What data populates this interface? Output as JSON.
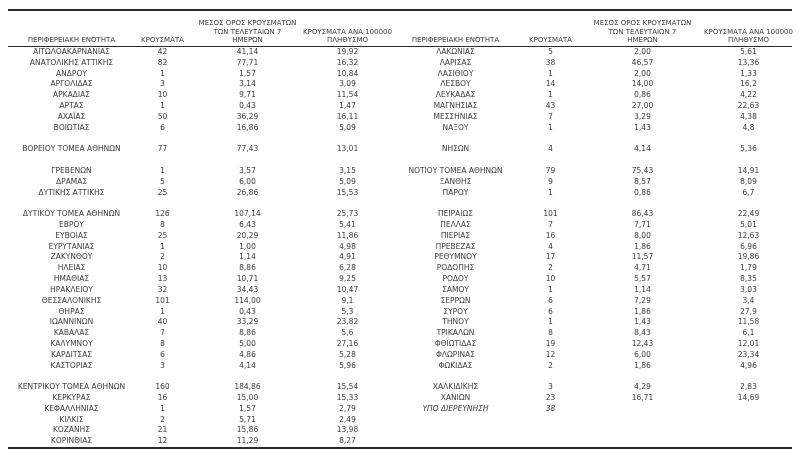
{
  "colors": {
    "background": "#ffffff",
    "text": "#3a3a3a",
    "rule_line": "#2b2b2b"
  },
  "columns": {
    "region": "ΠΕΡΙΦΕΡΕΙΑΚΗ ΕΝΟΤΗΤΑ",
    "cases": "ΚΡΟΥΣΜΑΤΑ",
    "avg7_lines": [
      "ΜΕΣΟΣ ΟΡΟΣ ΚΡΟΥΣΜΑΤΩΝ",
      "ΤΩΝ ΤΕΛΕΥΤΑΙΩΝ 7",
      "ΗΜΕΡΩΝ"
    ],
    "per100k_lines": [
      "ΚΡΟΥΣΜΑΤΑ ΑΝΑ 100000",
      "ΠΛΗΘΥΣΜΟ"
    ]
  },
  "left_table": {
    "rows": [
      {
        "name": "ΑΙΤΩΛΟΑΚΑΡΝΑΝΙΑΣ",
        "cases": "42",
        "avg7": "41,14",
        "per100k": "19,92"
      },
      {
        "name": "ΑΝΑΤΟΛΙΚΗΣ ΑΤΤΙΚΗΣ",
        "cases": "82",
        "avg7": "77,71",
        "per100k": "16,32"
      },
      {
        "name": "ΑΝΔΡΟΥ",
        "cases": "1",
        "avg7": "1,57",
        "per100k": "10,84"
      },
      {
        "name": "ΑΡΓΟΛΙΔΑΣ",
        "cases": "3",
        "avg7": "3,14",
        "per100k": "3,09"
      },
      {
        "name": "ΑΡΚΑΔΙΑΣ",
        "cases": "10",
        "avg7": "9,71",
        "per100k": "11,54"
      },
      {
        "name": "ΑΡΤΑΣ",
        "cases": "1",
        "avg7": "0,43",
        "per100k": "1,47"
      },
      {
        "name": "ΑΧΑΪΑΣ",
        "cases": "50",
        "avg7": "36,29",
        "per100k": "16,11"
      },
      {
        "name": "ΒΟΙΩΤΙΑΣ",
        "cases": "6",
        "avg7": "16,86",
        "per100k": "5,09"
      },
      {
        "name": "",
        "cases": "",
        "avg7": "",
        "per100k": ""
      },
      {
        "name": "ΒΟΡΕΙΟΥ ΤΟΜΕΑ ΑΘΗΝΩΝ",
        "cases": "77",
        "avg7": "77,43",
        "per100k": "13,01"
      },
      {
        "name": "",
        "cases": "",
        "avg7": "",
        "per100k": ""
      },
      {
        "name": "ΓΡΕΒΕΝΩΝ",
        "cases": "1",
        "avg7": "3,57",
        "per100k": "3,15"
      },
      {
        "name": "ΔΡΑΜΑΣ",
        "cases": "5",
        "avg7": "6,00",
        "per100k": "5,09"
      },
      {
        "name": "ΔΥΤΙΚΗΣ ΑΤΤΙΚΗΣ",
        "cases": "25",
        "avg7": "26,86",
        "per100k": "15,53"
      },
      {
        "name": "",
        "cases": "",
        "avg7": "",
        "per100k": ""
      },
      {
        "name": "ΔΥΤΙΚΟΥ ΤΟΜΕΑ ΑΘΗΝΩΝ",
        "cases": "126",
        "avg7": "107,14",
        "per100k": "25,73"
      },
      {
        "name": "ΕΒΡΟΥ",
        "cases": "8",
        "avg7": "6,43",
        "per100k": "5,41"
      },
      {
        "name": "ΕΥΒΟΙΑΣ",
        "cases": "25",
        "avg7": "20,29",
        "per100k": "11,86"
      },
      {
        "name": "ΕΥΡΥΤΑΝΙΑΣ",
        "cases": "1",
        "avg7": "1,00",
        "per100k": "4,98"
      },
      {
        "name": "ΖΑΚΥΝΘΟΥ",
        "cases": "2",
        "avg7": "1,14",
        "per100k": "4,91"
      },
      {
        "name": "ΗΛΕΙΑΣ",
        "cases": "10",
        "avg7": "8,86",
        "per100k": "6,28"
      },
      {
        "name": "ΗΜΑΘΙΑΣ",
        "cases": "13",
        "avg7": "10,71",
        "per100k": "9,25"
      },
      {
        "name": "ΗΡΑΚΛΕΙΟΥ",
        "cases": "32",
        "avg7": "34,43",
        "per100k": "10,47"
      },
      {
        "name": "ΘΕΣΣΑΛΟΝΙΚΗΣ",
        "cases": "101",
        "avg7": "114,00",
        "per100k": "9,1"
      },
      {
        "name": "ΘΗΡΑΣ",
        "cases": "1",
        "avg7": "0,43",
        "per100k": "5,3"
      },
      {
        "name": "ΙΩΑΝΝΙΝΩΝ",
        "cases": "40",
        "avg7": "33,29",
        "per100k": "23,82"
      },
      {
        "name": "ΚΑΒΑΛΑΣ",
        "cases": "7",
        "avg7": "8,86",
        "per100k": "5,6"
      },
      {
        "name": "ΚΑΛΥΜΝΟΥ",
        "cases": "8",
        "avg7": "5,00",
        "per100k": "27,16"
      },
      {
        "name": "ΚΑΡΔΙΤΣΑΣ",
        "cases": "6",
        "avg7": "4,86",
        "per100k": "5,28"
      },
      {
        "name": "ΚΑΣΤΟΡΙΑΣ",
        "cases": "3",
        "avg7": "4,14",
        "per100k": "5,96"
      },
      {
        "name": "",
        "cases": "",
        "avg7": "",
        "per100k": ""
      },
      {
        "name": "ΚΕΝΤΡΙΚΟΥ ΤΟΜΕΑ ΑΘΗΝΩΝ",
        "cases": "160",
        "avg7": "184,86",
        "per100k": "15,54"
      },
      {
        "name": "ΚΕΡΚΥΡΑΣ",
        "cases": "16",
        "avg7": "15,00",
        "per100k": "15,33"
      },
      {
        "name": "ΚΕΦΑΛΛΗΝΙΑΣ",
        "cases": "1",
        "avg7": "1,57",
        "per100k": "2,79"
      },
      {
        "name": "ΚΙΛΚΙΣ",
        "cases": "2",
        "avg7": "5,71",
        "per100k": "2,49"
      },
      {
        "name": "ΚΟΖΑΝΗΣ",
        "cases": "21",
        "avg7": "15,86",
        "per100k": "13,98"
      },
      {
        "name": "ΚΟΡΙΝΘΙΑΣ",
        "cases": "12",
        "avg7": "11,29",
        "per100k": "8,27"
      }
    ]
  },
  "right_table": {
    "rows": [
      {
        "name": "ΛΑΚΩΝΙΑΣ",
        "cases": "5",
        "avg7": "2,00",
        "per100k": "5,61"
      },
      {
        "name": "ΛΑΡΙΣΑΣ",
        "cases": "38",
        "avg7": "46,57",
        "per100k": "13,36"
      },
      {
        "name": "ΛΑΣΙΘΙΟΥ",
        "cases": "1",
        "avg7": "2,00",
        "per100k": "1,33"
      },
      {
        "name": "ΛΕΣΒΟΥ",
        "cases": "14",
        "avg7": "14,00",
        "per100k": "16,2"
      },
      {
        "name": "ΛΕΥΚΑΔΑΣ",
        "cases": "1",
        "avg7": "0,86",
        "per100k": "4,22"
      },
      {
        "name": "ΜΑΓΝΗΣΙΑΣ",
        "cases": "43",
        "avg7": "27,00",
        "per100k": "22,63"
      },
      {
        "name": "ΜΕΣΣΗΝΙΑΣ",
        "cases": "7",
        "avg7": "3,29",
        "per100k": "4,38"
      },
      {
        "name": "ΝΑΞΟΥ",
        "cases": "1",
        "avg7": "1,43",
        "per100k": "4,8"
      },
      {
        "name": "",
        "cases": "",
        "avg7": "",
        "per100k": ""
      },
      {
        "name": "ΝΗΣΩΝ",
        "cases": "4",
        "avg7": "4,14",
        "per100k": "5,36"
      },
      {
        "name": "",
        "cases": "",
        "avg7": "",
        "per100k": ""
      },
      {
        "name": "ΝΟΤΙΟΥ ΤΟΜΕΑ ΑΘΗΝΩΝ",
        "cases": "79",
        "avg7": "75,43",
        "per100k": "14,91"
      },
      {
        "name": "ΞΑΝΘΗΣ",
        "cases": "9",
        "avg7": "8,57",
        "per100k": "8,09"
      },
      {
        "name": "ΠΑΡΟΥ",
        "cases": "1",
        "avg7": "0,86",
        "per100k": "6,7"
      },
      {
        "name": "",
        "cases": "",
        "avg7": "",
        "per100k": ""
      },
      {
        "name": "ΠΕΙΡΑΙΩΣ",
        "cases": "101",
        "avg7": "86,43",
        "per100k": "22,49"
      },
      {
        "name": "ΠΕΛΛΑΣ",
        "cases": "7",
        "avg7": "7,71",
        "per100k": "5,01"
      },
      {
        "name": "ΠΙΕΡΙΑΣ",
        "cases": "16",
        "avg7": "8,00",
        "per100k": "12,63"
      },
      {
        "name": "ΠΡΕΒΕΖΑΣ",
        "cases": "4",
        "avg7": "1,86",
        "per100k": "6,96"
      },
      {
        "name": "ΡΕΘΥΜΝΟΥ",
        "cases": "17",
        "avg7": "11,57",
        "per100k": "19,86"
      },
      {
        "name": "ΡΟΔΟΠΗΣ",
        "cases": "2",
        "avg7": "4,71",
        "per100k": "1,79"
      },
      {
        "name": "ΡΟΔΟΥ",
        "cases": "10",
        "avg7": "5,57",
        "per100k": "8,35"
      },
      {
        "name": "ΣΑΜΟΥ",
        "cases": "1",
        "avg7": "1,14",
        "per100k": "3,03"
      },
      {
        "name": "ΣΕΡΡΩΝ",
        "cases": "6",
        "avg7": "7,29",
        "per100k": "3,4"
      },
      {
        "name": "ΣΥΡΟΥ",
        "cases": "6",
        "avg7": "1,86",
        "per100k": "27,9"
      },
      {
        "name": "ΤΗΝΟΥ",
        "cases": "1",
        "avg7": "1,43",
        "per100k": "11,58"
      },
      {
        "name": "ΤΡΙΚΑΛΩΝ",
        "cases": "8",
        "avg7": "8,43",
        "per100k": "6,1"
      },
      {
        "name": "ΦΘΙΩΤΙΔΑΣ",
        "cases": "19",
        "avg7": "12,43",
        "per100k": "12,01"
      },
      {
        "name": "ΦΛΩΡΙΝΑΣ",
        "cases": "12",
        "avg7": "6,00",
        "per100k": "23,34"
      },
      {
        "name": "ΦΩΚΙΔΑΣ",
        "cases": "2",
        "avg7": "1,86",
        "per100k": "4,96"
      },
      {
        "name": "",
        "cases": "",
        "avg7": "",
        "per100k": ""
      },
      {
        "name": "ΧΑΛΚΙΔΙΚΗΣ",
        "cases": "3",
        "avg7": "4,29",
        "per100k": "2,83"
      },
      {
        "name": "ΧΑΝΙΩΝ",
        "cases": "23",
        "avg7": "16,71",
        "per100k": "14,69"
      },
      {
        "name": "ΥΠΟ ΔΙΕΡΕΥΝΗΣΗ",
        "cases": "38",
        "avg7": "",
        "per100k": "",
        "italic": true
      },
      {
        "name": "",
        "cases": "",
        "avg7": "",
        "per100k": ""
      },
      {
        "name": "",
        "cases": "",
        "avg7": "",
        "per100k": ""
      },
      {
        "name": "",
        "cases": "",
        "avg7": "",
        "per100k": ""
      }
    ]
  }
}
